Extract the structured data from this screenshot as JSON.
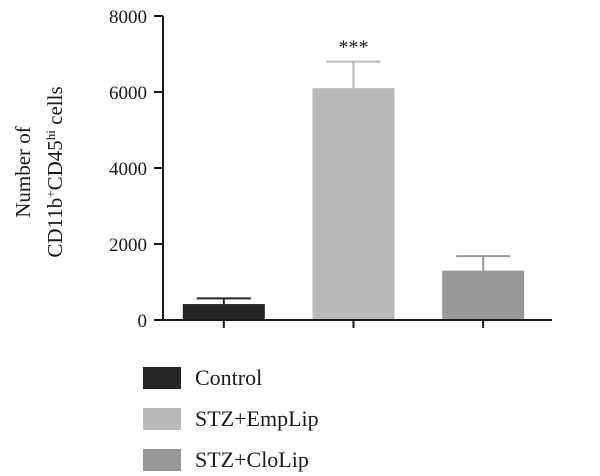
{
  "chart_data": {
    "type": "bar",
    "categories": [
      "Control",
      "STZ+EmpLip",
      "STZ+CloLip"
    ],
    "values": [
      420,
      6100,
      1300
    ],
    "errors": [
      150,
      700,
      380
    ],
    "ylabel_line1": "Number of",
    "ylabel_line2": "CD11b+CD45hi cells",
    "ylabel_parts": {
      "a": "CD11b",
      "sup1": "+",
      "b": "CD45",
      "sup2": "hi",
      "c": " cells"
    },
    "ylim": [
      0,
      8000
    ],
    "yticks": [
      "0",
      "2000",
      "4000",
      "6000",
      "8000"
    ],
    "annotations": [
      {
        "category": "STZ+EmpLip",
        "text": "***"
      }
    ],
    "legend": [
      {
        "label": "Control",
        "color": "#262626"
      },
      {
        "label": "STZ+EmpLip",
        "color": "#b9b9b9"
      },
      {
        "label": "STZ+CloLip",
        "color": "#98989a"
      }
    ],
    "legend_position": "bottom-left",
    "grid": false
  }
}
